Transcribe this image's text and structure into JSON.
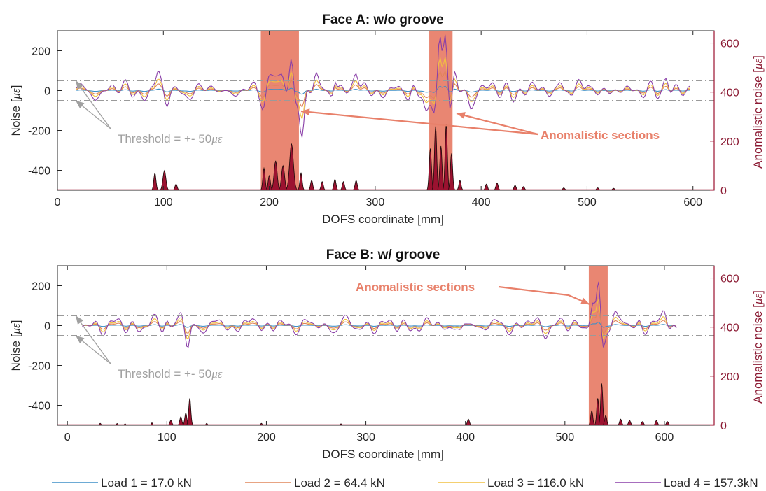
{
  "chart_data": [
    {
      "type": "line",
      "title": "Face A: w/o groove",
      "xlabel": "DOFS coordinate [mm]",
      "ylabel": "Noise [",
      "ylabel_unit": "με",
      "ylabel_end": "]",
      "y2label": "Anomalistic noise [",
      "y2label_unit": "με",
      "y2label_end": "]",
      "xlim": [
        0,
        620
      ],
      "ylim": [
        -500,
        300
      ],
      "y2lim": [
        0,
        650
      ],
      "xticks": [
        "0",
        "100",
        "200",
        "300",
        "400",
        "500",
        "600"
      ],
      "yticks": [
        "200",
        "0",
        "-200",
        "-400"
      ],
      "y2ticks": [
        "600",
        "400",
        "200",
        "0"
      ],
      "grid": false,
      "threshold": 50,
      "threshold_label": "Threshold = +- 50",
      "threshold_unit": "με",
      "signal_range": [
        18,
        597
      ],
      "anomalous_sections": [
        [
          192,
          228
        ],
        [
          351,
          373
        ]
      ],
      "annotation": "Anomalistic sections",
      "features": {
        "load4": [
          [
            15,
            5,
            4
          ],
          [
            95,
            80,
            3
          ],
          [
            103,
            -80,
            3
          ],
          [
            195,
            -70,
            3
          ],
          [
            205,
            110,
            5
          ],
          [
            213,
            60,
            3
          ],
          [
            221,
            170,
            3
          ],
          [
            224,
            -110,
            3
          ],
          [
            231,
            -230,
            3
          ],
          [
            244,
            80,
            3
          ],
          [
            262,
            70,
            2
          ],
          [
            282,
            90,
            3
          ],
          [
            332,
            -60,
            3
          ],
          [
            348,
            -80,
            3
          ],
          [
            356,
            -120,
            3
          ],
          [
            361,
            250,
            2.5
          ],
          [
            366,
            280,
            2.5
          ],
          [
            371,
            -150,
            2.5
          ],
          [
            375,
            100,
            3
          ],
          [
            390,
            -60,
            3
          ],
          [
            475,
            55,
            3
          ],
          [
            500,
            45,
            3
          ],
          [
            575,
            55,
            3
          ]
        ],
        "anomaly": [
          [
            92,
            70,
            1.5
          ],
          [
            101,
            80,
            2
          ],
          [
            112,
            25,
            1.5
          ],
          [
            195,
            90,
            1.5
          ],
          [
            200,
            60,
            1.5
          ],
          [
            206,
            120,
            2
          ],
          [
            213,
            100,
            2
          ],
          [
            221,
            190,
            2.5
          ],
          [
            230,
            70,
            1.5
          ],
          [
            240,
            40,
            1.5
          ],
          [
            250,
            35,
            1.5
          ],
          [
            262,
            45,
            1.5
          ],
          [
            270,
            35,
            1.5
          ],
          [
            282,
            40,
            1.5
          ],
          [
            352,
            170,
            1.5
          ],
          [
            357,
            260,
            1.5
          ],
          [
            362,
            180,
            1.5
          ],
          [
            367,
            270,
            1.5
          ],
          [
            372,
            150,
            1.5
          ],
          [
            380,
            40,
            1.5
          ],
          [
            405,
            25,
            1.5
          ],
          [
            415,
            30,
            1.5
          ],
          [
            432,
            20,
            1.5
          ],
          [
            440,
            15,
            1.5
          ],
          [
            478,
            10,
            1.5
          ],
          [
            510,
            10,
            1.5
          ],
          [
            525,
            8,
            1.5
          ]
        ]
      }
    },
    {
      "type": "line",
      "title": "Face B: w/ groove",
      "xlabel": "DOFS coordinate [mm]",
      "ylabel": "Noise [",
      "ylabel_unit": "με",
      "ylabel_end": "]",
      "y2label": "Anomalistic noise [",
      "y2label_unit": "με",
      "y2label_end": "]",
      "xlim": [
        -10,
        650
      ],
      "ylim": [
        -500,
        300
      ],
      "y2lim": [
        0,
        650
      ],
      "xticks": [
        "0",
        "100",
        "200",
        "300",
        "400",
        "500",
        "600"
      ],
      "yticks": [
        "200",
        "0",
        "-200",
        "-400"
      ],
      "y2ticks": [
        "600",
        "400",
        "200",
        "0"
      ],
      "grid": false,
      "threshold": 50,
      "threshold_label": "Threshold = +- 50",
      "threshold_unit": "με",
      "signal_range": [
        15,
        612
      ],
      "anomalous_sections": [
        [
          524,
          543
        ]
      ],
      "annotation": "Anomalistic sections",
      "features": {
        "load4": [
          [
            15,
            5,
            4
          ],
          [
            100,
            50,
            3
          ],
          [
            114,
            60,
            3
          ],
          [
            121,
            -130,
            3
          ],
          [
            185,
            30,
            3
          ],
          [
            395,
            -35,
            3
          ],
          [
            528,
            110,
            3
          ],
          [
            534,
            220,
            2.5
          ],
          [
            538,
            -95,
            3
          ],
          [
            550,
            55,
            3
          ],
          [
            575,
            40,
            3
          ],
          [
            600,
            45,
            3
          ]
        ],
        "anomaly": [
          [
            33,
            8,
            1
          ],
          [
            50,
            7,
            1
          ],
          [
            58,
            6,
            1
          ],
          [
            85,
            10,
            1
          ],
          [
            104,
            20,
            1.5
          ],
          [
            114,
            35,
            1.5
          ],
          [
            119,
            50,
            1.5
          ],
          [
            123,
            110,
            1.5
          ],
          [
            140,
            8,
            1
          ],
          [
            195,
            8,
            1
          ],
          [
            275,
            6,
            1
          ],
          [
            403,
            25,
            1.5
          ],
          [
            527,
            60,
            1.5
          ],
          [
            533,
            110,
            1.5
          ],
          [
            537,
            170,
            1.5
          ],
          [
            541,
            40,
            1.5
          ],
          [
            556,
            25,
            1.5
          ],
          [
            565,
            20,
            1.5
          ],
          [
            578,
            15,
            1.5
          ],
          [
            592,
            20,
            1.5
          ],
          [
            603,
            15,
            1.5
          ]
        ]
      }
    }
  ],
  "legend": {
    "placement": "bottom",
    "items": [
      {
        "label": "Load 1 = 17.0 kN",
        "color": "#3d8fc7"
      },
      {
        "label": "Load 2 = 64.4 kN",
        "color": "#e0855a"
      },
      {
        "label": "Load 3 = 116.0 kN",
        "color": "#f0c040"
      },
      {
        "label": "Load 4 = 157.3kN",
        "color": "#8a3fa8"
      }
    ]
  },
  "colors": {
    "anomaly_fill": "#9b1230",
    "section_fill": "#e8806a",
    "threshold_line": "#9a9a9a",
    "annotation": "#e8806a"
  }
}
